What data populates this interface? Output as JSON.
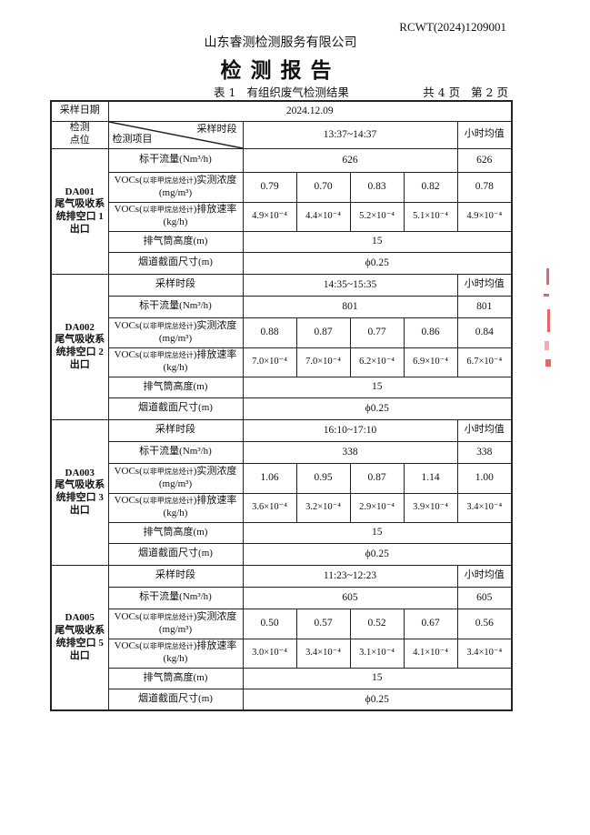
{
  "header": {
    "doc_no": "RCWT(2024)1209001",
    "company": "山东睿测检测服务有限公司",
    "title": "检测报告",
    "table_caption": "表 1   有组织废气检测结果",
    "pages": "共 4 页   第 2 页"
  },
  "table": {
    "date_label": "采样日期",
    "date_value": "2024.12.09",
    "point_label": "检测\n点位",
    "period_label": "采样时段",
    "item_label": "检测项目",
    "hourly_avg_label": "小时均值",
    "row_labels": {
      "flow": "标干流量(Nm³/h)",
      "conc_prefix": "VOCs(",
      "conc_note": "以非甲烷总烃计",
      "conc_suffix": ")实测浓度",
      "conc_unit": "(mg/m³)",
      "rate_suffix": ")排放速率",
      "rate_unit": "(kg/h)",
      "height": "排气筒高度(m)",
      "size": "烟道截面尺寸(m)"
    },
    "blocks": [
      {
        "point": "DA001\n尾气吸收系统排空口 1 出口",
        "period": "13:37~14:37",
        "flow": "626",
        "flow_avg": "626",
        "conc": [
          "0.79",
          "0.70",
          "0.83",
          "0.82"
        ],
        "conc_avg": "0.78",
        "rate": [
          "4.9×10⁻⁴",
          "4.4×10⁻⁴",
          "5.2×10⁻⁴",
          "5.1×10⁻⁴"
        ],
        "rate_avg": "4.9×10⁻⁴",
        "height": "15",
        "size": "ϕ0.25"
      },
      {
        "point": "DA002\n尾气吸收系统排空口 2 出口",
        "period": "14:35~15:35",
        "flow": "801",
        "flow_avg": "801",
        "conc": [
          "0.88",
          "0.87",
          "0.77",
          "0.86"
        ],
        "conc_avg": "0.84",
        "rate": [
          "7.0×10⁻⁴",
          "7.0×10⁻⁴",
          "6.2×10⁻⁴",
          "6.9×10⁻⁴"
        ],
        "rate_avg": "6.7×10⁻⁴",
        "height": "15",
        "size": "ϕ0.25"
      },
      {
        "point": "DA003\n尾气吸收系统排空口 3 出口",
        "period": "16:10~17:10",
        "flow": "338",
        "flow_avg": "338",
        "conc": [
          "1.06",
          "0.95",
          "0.87",
          "1.14"
        ],
        "conc_avg": "1.00",
        "rate": [
          "3.6×10⁻⁴",
          "3.2×10⁻⁴",
          "2.9×10⁻⁴",
          "3.9×10⁻⁴"
        ],
        "rate_avg": "3.4×10⁻⁴",
        "height": "15",
        "size": "ϕ0.25"
      },
      {
        "point": "DA005\n尾气吸收系统排空口 5 出口",
        "period": "11:23~12:23",
        "flow": "605",
        "flow_avg": "605",
        "conc": [
          "0.50",
          "0.57",
          "0.52",
          "0.67"
        ],
        "conc_avg": "0.56",
        "rate": [
          "3.0×10⁻⁴",
          "3.4×10⁻⁴",
          "3.1×10⁻⁴",
          "4.1×10⁻⁴"
        ],
        "rate_avg": "3.4×10⁻⁴",
        "height": "15",
        "size": "ϕ0.25"
      }
    ]
  },
  "colors": {
    "stamp": "#d33333"
  }
}
